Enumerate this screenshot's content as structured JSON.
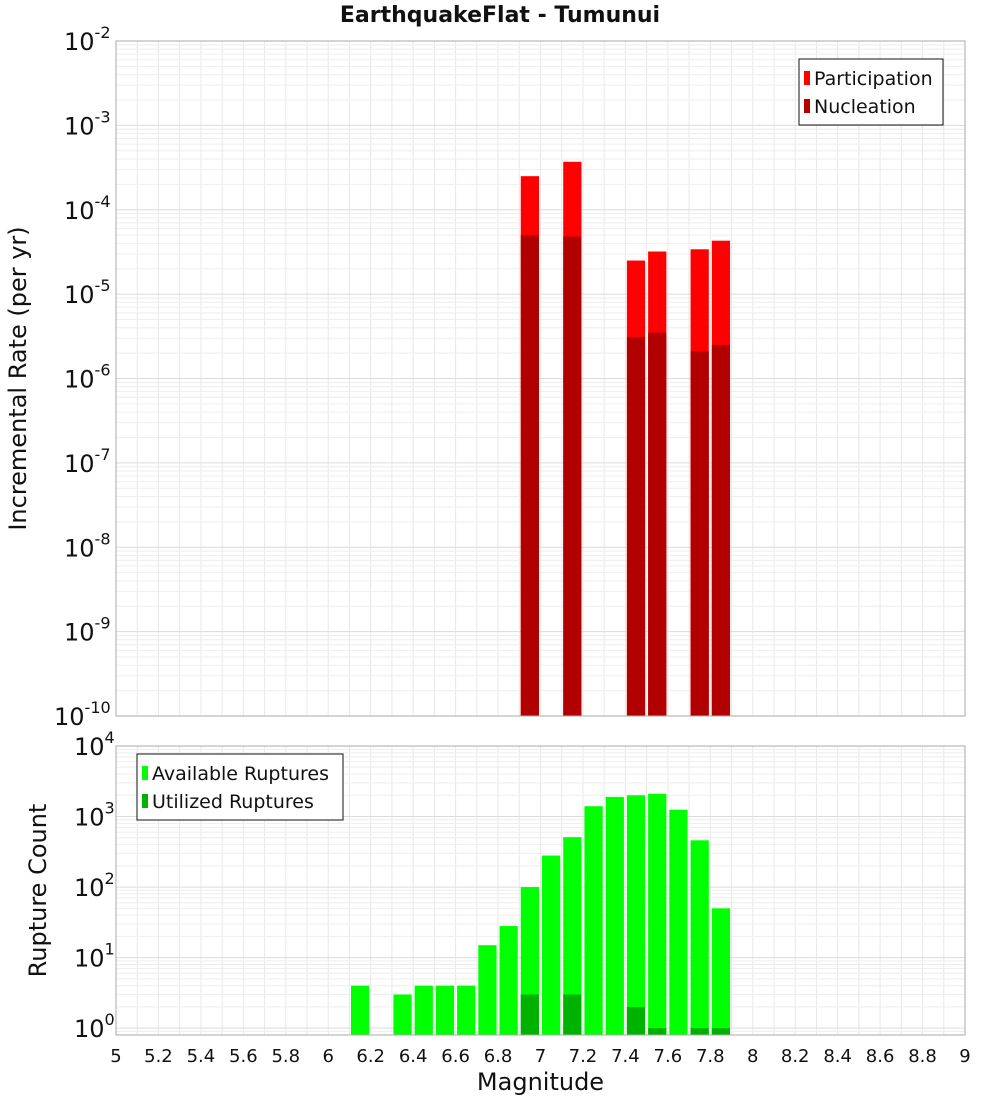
{
  "title": "EarthquakeFlat - Tumunui",
  "chart_data": [
    {
      "type": "bar",
      "yscale": "log",
      "ylabel": "Incremental Rate (per yr)",
      "ylim": [
        1e-10,
        0.01
      ],
      "xlim": [
        5,
        9
      ],
      "bar_width": 0.1,
      "legend_position": "top-right",
      "y_ticks": [
        {
          "base": "10",
          "exp": "-10"
        },
        {
          "base": "10",
          "exp": "-9"
        },
        {
          "base": "10",
          "exp": "-8"
        },
        {
          "base": "10",
          "exp": "-7"
        },
        {
          "base": "10",
          "exp": "-6"
        },
        {
          "base": "10",
          "exp": "-5"
        },
        {
          "base": "10",
          "exp": "-4"
        },
        {
          "base": "10",
          "exp": "-3"
        },
        {
          "base": "10",
          "exp": "-2"
        }
      ],
      "series": [
        {
          "name": "Participation",
          "color": "#ff0000",
          "x": [
            6.95,
            7.15,
            7.45,
            7.55,
            7.75,
            7.85
          ],
          "values": [
            0.00025,
            0.00037,
            2.5e-05,
            3.2e-05,
            3.4e-05,
            4.3e-05
          ]
        },
        {
          "name": "Nucleation",
          "color": "#b20000",
          "x": [
            6.95,
            7.15,
            7.45,
            7.55,
            7.75,
            7.85
          ],
          "values": [
            5e-05,
            4.8e-05,
            3.1e-06,
            3.5e-06,
            2.1e-06,
            2.5e-06
          ]
        }
      ]
    },
    {
      "type": "bar",
      "yscale": "log",
      "xlabel": "Magnitude",
      "ylabel": "Rupture Count",
      "ylim": [
        0.8,
        10000
      ],
      "xlim": [
        5,
        9
      ],
      "bar_width": 0.1,
      "legend_position": "top-left",
      "y_ticks": [
        {
          "base": "10",
          "exp": "0",
          "value": 1
        },
        {
          "base": "10",
          "exp": "1",
          "value": 10
        },
        {
          "base": "10",
          "exp": "2",
          "value": 100
        },
        {
          "base": "10",
          "exp": "3",
          "value": 1000
        },
        {
          "base": "10",
          "exp": "4",
          "value": 10000
        }
      ],
      "x_ticks": [
        "5",
        "5.2",
        "5.4",
        "5.6",
        "5.8",
        "6",
        "6.2",
        "6.4",
        "6.6",
        "6.8",
        "7",
        "7.2",
        "7.4",
        "7.6",
        "7.8",
        "8",
        "8.2",
        "8.4",
        "8.6",
        "8.8",
        "9"
      ],
      "series": [
        {
          "name": "Available Ruptures",
          "color": "#00ff00",
          "x": [
            6.15,
            6.35,
            6.45,
            6.55,
            6.65,
            6.75,
            6.85,
            6.95,
            7.05,
            7.15,
            7.25,
            7.35,
            7.45,
            7.55,
            7.65,
            7.75,
            7.85
          ],
          "values": [
            4,
            3,
            4,
            4,
            4,
            15,
            28,
            100,
            280,
            510,
            1400,
            1900,
            2000,
            2100,
            1250,
            460,
            50
          ]
        },
        {
          "name": "Utilized Ruptures",
          "color": "#00b200",
          "x": [
            6.95,
            7.15,
            7.45,
            7.55,
            7.75,
            7.85
          ],
          "values": [
            3,
            3,
            2,
            1,
            1,
            1
          ]
        }
      ]
    }
  ]
}
